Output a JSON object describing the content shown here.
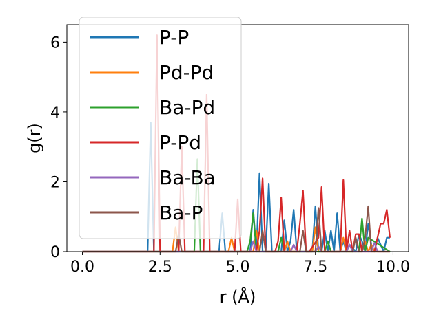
{
  "chart_data": {
    "type": "line",
    "xlabel": "r (Å)",
    "ylabel": "g(r)",
    "xlim": [
      -0.5,
      10.5
    ],
    "ylim": [
      0,
      6.5
    ],
    "xticks": [
      0.0,
      2.5,
      5.0,
      7.5,
      10.0
    ],
    "xtick_labels": [
      "0.0",
      "2.5",
      "5.0",
      "7.5",
      "10.0"
    ],
    "yticks": [
      0,
      2,
      4,
      6
    ],
    "ytick_labels": [
      "0",
      "2",
      "4",
      "6"
    ],
    "grid": false,
    "legend_position": "top-left",
    "series": [
      {
        "name": "P-P",
        "color": "#1f77b4",
        "x": [
          0.0,
          2.0,
          2.1,
          2.2,
          2.3,
          2.4,
          4.4,
          4.5,
          4.6,
          5.4,
          5.5,
          5.6,
          5.7,
          5.8,
          5.9,
          6.0,
          6.1,
          6.2,
          6.4,
          6.5,
          6.6,
          6.7,
          6.8,
          6.9,
          7.4,
          7.5,
          7.6,
          7.7,
          7.8,
          7.9,
          8.0,
          8.1,
          8.2,
          8.3,
          8.4,
          8.5,
          8.6,
          8.8,
          8.9,
          9.0,
          9.1,
          9.2,
          9.3,
          9.4,
          9.5,
          9.6,
          9.7,
          9.8,
          9.9
        ],
        "y": [
          0.0,
          0.0,
          0.0,
          3.7,
          0.0,
          0.0,
          0.0,
          1.1,
          0.0,
          0.0,
          1.2,
          0.0,
          2.25,
          0.0,
          0.0,
          1.95,
          0.0,
          0.0,
          0.0,
          0.9,
          0.0,
          0.3,
          1.2,
          0.0,
          0.0,
          1.3,
          0.0,
          0.0,
          0.6,
          0.0,
          0.6,
          0.0,
          1.1,
          0.0,
          0.3,
          0.0,
          0.2,
          0.0,
          0.5,
          0.3,
          0.0,
          0.8,
          0.2,
          0.0,
          0.4,
          0.2,
          0.0,
          0.4,
          0.4
        ]
      },
      {
        "name": "Pd-Pd",
        "color": "#ff7f0e",
        "x": [
          0.0,
          2.9,
          3.0,
          3.1,
          3.2,
          4.7,
          4.8,
          4.9,
          5.0,
          5.5,
          5.6,
          5.7,
          5.8,
          5.9,
          6.5,
          6.6,
          6.7,
          7.3,
          7.4,
          7.5,
          7.6,
          8.3,
          8.4,
          8.5,
          9.0,
          9.1,
          9.2,
          9.3,
          9.4,
          9.5,
          9.9
        ],
        "y": [
          0.0,
          0.0,
          0.7,
          0.0,
          0.0,
          0.0,
          0.4,
          0.0,
          0.0,
          0.0,
          0.6,
          0.0,
          0.0,
          0.0,
          0.0,
          0.3,
          0.0,
          0.0,
          0.0,
          0.7,
          0.0,
          0.0,
          0.4,
          0.0,
          0.0,
          0.3,
          0.0,
          0.2,
          0.0,
          0.0,
          0.0
        ]
      },
      {
        "name": "Ba-Pd",
        "color": "#2ca02c",
        "x": [
          0.0,
          3.5,
          3.6,
          3.7,
          3.8,
          3.9,
          5.3,
          5.4,
          5.5,
          5.6,
          5.7,
          6.3,
          6.4,
          6.5,
          7.8,
          7.9,
          8.0,
          8.8,
          8.9,
          9.0,
          9.1,
          9.2,
          9.9
        ],
        "y": [
          0.0,
          0.0,
          0.0,
          2.65,
          0.0,
          0.0,
          0.0,
          0.3,
          1.1,
          0.0,
          0.0,
          0.0,
          0.4,
          0.0,
          0.0,
          0.3,
          0.0,
          0.0,
          0.0,
          0.95,
          0.0,
          0.4,
          0.0
        ]
      },
      {
        "name": "P-Pd",
        "color": "#d62728",
        "x": [
          0.0,
          2.3,
          2.4,
          2.5,
          2.6,
          3.1,
          3.2,
          3.3,
          3.4,
          3.9,
          4.0,
          4.1,
          4.2,
          4.9,
          5.0,
          5.1,
          5.2,
          5.3,
          5.6,
          5.7,
          5.8,
          5.9,
          6.2,
          6.3,
          6.4,
          6.5,
          6.9,
          7.0,
          7.1,
          7.2,
          7.3,
          7.6,
          7.7,
          7.8,
          8.3,
          8.4,
          8.5,
          8.6,
          8.7,
          8.8,
          8.9,
          9.0,
          9.3,
          9.4,
          9.5,
          9.6,
          9.7,
          9.8,
          9.9
        ],
        "y": [
          0.0,
          0.0,
          6.2,
          0.0,
          0.0,
          0.0,
          3.0,
          0.0,
          0.0,
          0.0,
          4.5,
          0.0,
          0.0,
          0.0,
          1.5,
          0.0,
          0.0,
          0.0,
          0.0,
          0.6,
          2.1,
          0.0,
          0.0,
          0.3,
          1.55,
          0.0,
          0.0,
          0.8,
          1.75,
          0.0,
          0.0,
          0.4,
          1.85,
          0.0,
          0.0,
          2.05,
          0.0,
          0.6,
          0.0,
          0.5,
          0.5,
          0.0,
          0.0,
          0.0,
          0.4,
          0.8,
          0.8,
          1.2,
          0.4
        ]
      },
      {
        "name": "Ba-Ba",
        "color": "#9467bd",
        "x": [
          0.0,
          5.4,
          5.5,
          5.6,
          5.7,
          6.7,
          6.8,
          6.9,
          7.5,
          7.6,
          7.7,
          8.5,
          8.6,
          8.7,
          9.3,
          9.4,
          9.5,
          9.6,
          9.9
        ],
        "y": [
          0.0,
          0.0,
          0.3,
          0.0,
          0.0,
          0.0,
          0.2,
          0.0,
          0.0,
          0.15,
          0.0,
          0.0,
          0.2,
          0.0,
          0.0,
          0.25,
          0.0,
          0.0,
          0.0
        ]
      },
      {
        "name": "Ba-P",
        "color": "#8c564b",
        "x": [
          0.0,
          3.0,
          3.1,
          3.2,
          3.3,
          3.9,
          4.0,
          4.1,
          5.7,
          5.8,
          5.9,
          6.0,
          7.0,
          7.1,
          7.2,
          7.5,
          7.6,
          7.7,
          7.8,
          8.6,
          8.7,
          8.8,
          8.9,
          9.0,
          9.1,
          9.2,
          9.3,
          9.4,
          9.5,
          9.6,
          9.9
        ],
        "y": [
          0.0,
          0.0,
          0.5,
          0.0,
          0.0,
          0.0,
          0.0,
          0.0,
          0.0,
          0.6,
          0.0,
          0.0,
          0.0,
          0.6,
          0.0,
          0.0,
          1.25,
          0.0,
          0.0,
          0.0,
          0.0,
          0.4,
          0.0,
          0.0,
          0.4,
          1.3,
          0.0,
          0.0,
          0.0,
          0.0,
          0.0
        ]
      }
    ]
  }
}
